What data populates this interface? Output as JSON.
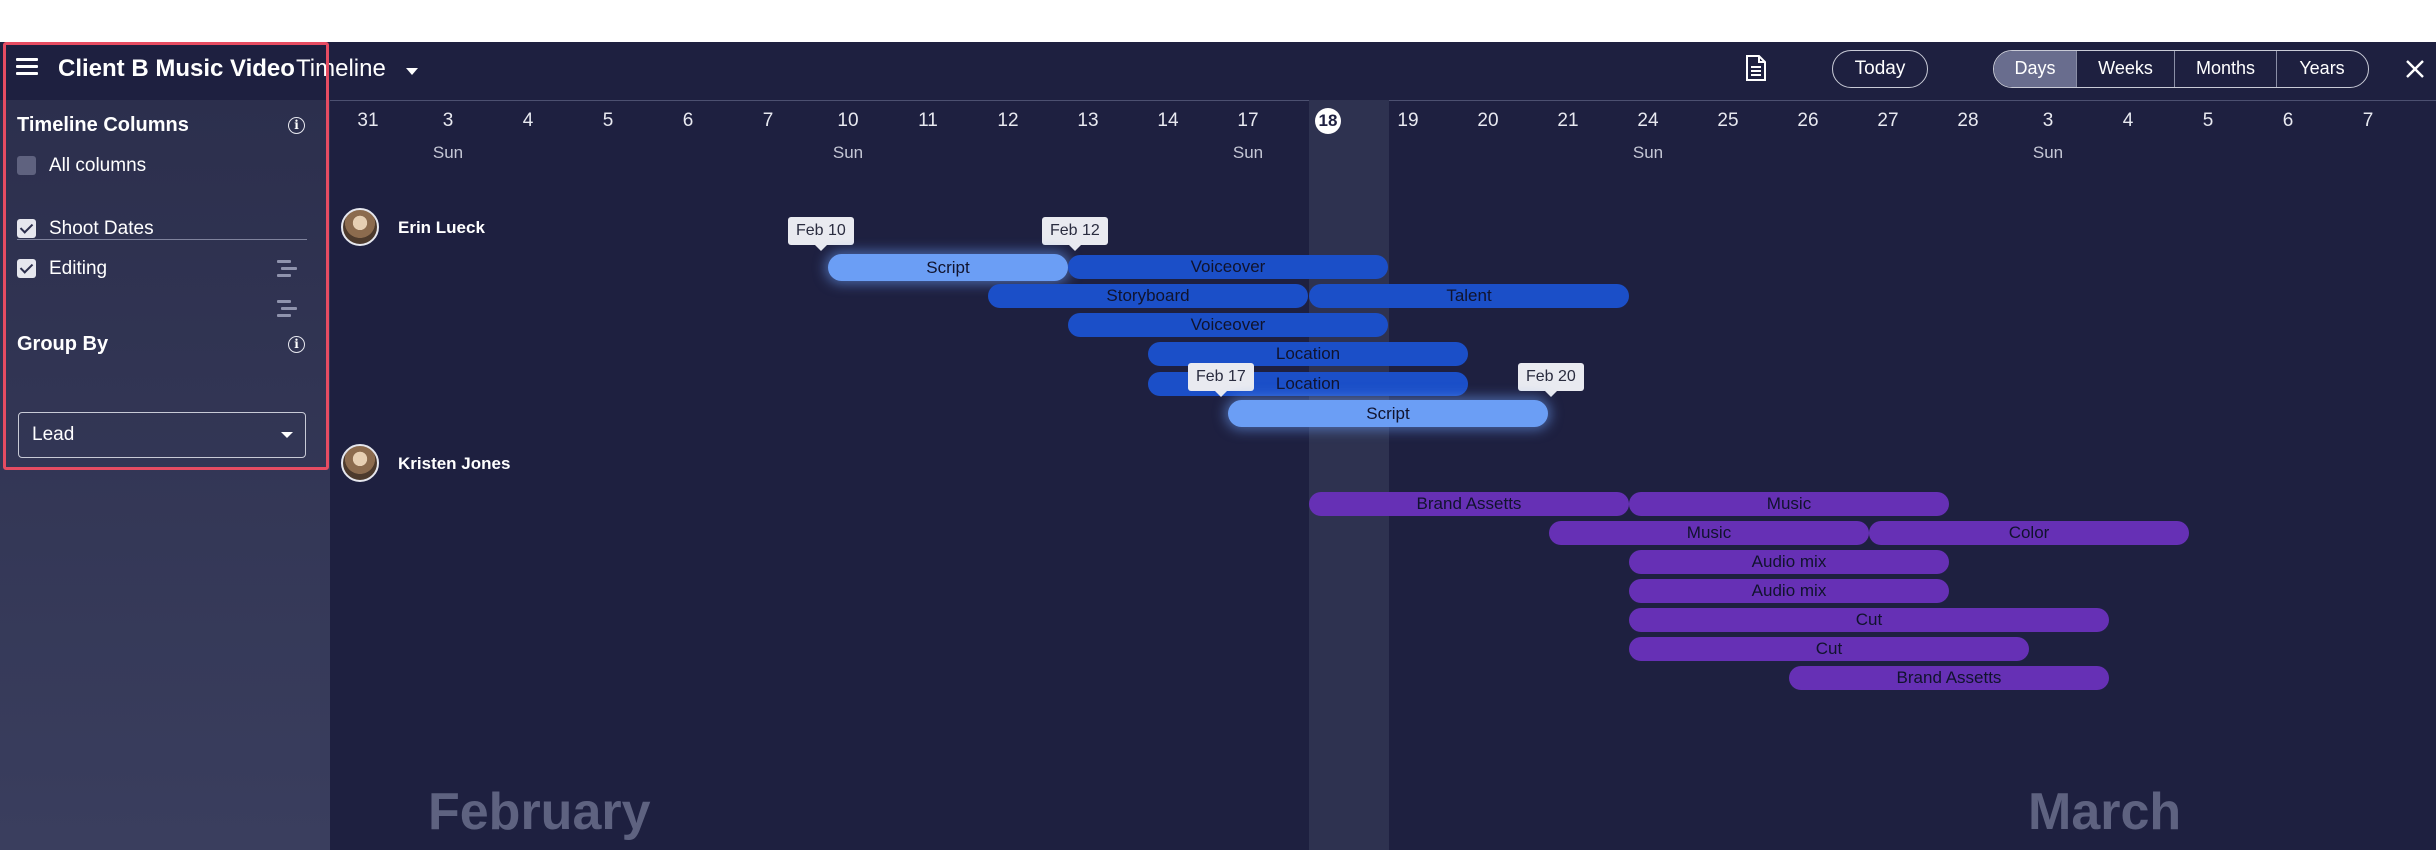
{
  "header": {
    "board_title": "Client B Music Video",
    "view_name": "Timeline",
    "today_label": "Today",
    "scales": [
      "Days",
      "Weeks",
      "Months",
      "Years"
    ],
    "active_scale": "Days"
  },
  "sidebar": {
    "columns_title": "Timeline Columns",
    "all_columns_label": "All columns",
    "all_columns_checked": false,
    "columns": [
      {
        "label": "Shoot Dates",
        "checked": true
      },
      {
        "label": "Editing",
        "checked": true
      }
    ],
    "group_by_title": "Group By",
    "group_by_value": "Lead"
  },
  "timeline": {
    "dates": [
      "31",
      "3",
      "4",
      "5",
      "6",
      "7",
      "10",
      "11",
      "12",
      "13",
      "14",
      "17",
      "18",
      "19",
      "20",
      "21",
      "24",
      "25",
      "26",
      "27",
      "28",
      "3",
      "4",
      "5",
      "6",
      "7"
    ],
    "day_of_week": [
      "",
      "Sun",
      "",
      "",
      "",
      "",
      "Sun",
      "",
      "",
      "",
      "",
      "Sun",
      "",
      "",
      "",
      "",
      "Sun",
      "",
      "",
      "",
      "",
      "Sun",
      "",
      "",
      "",
      ""
    ],
    "today": "18",
    "months": [
      "February",
      "March"
    ],
    "groups": [
      {
        "name": "Erin Lueck",
        "tooltips": [
          "Feb 10",
          "Feb 12",
          "Feb 17",
          "Feb 20"
        ],
        "items": [
          "Script",
          "Voiceover",
          "Storyboard",
          "Talent",
          "Voiceover",
          "Location",
          "Location",
          "Script"
        ]
      },
      {
        "name": "Kristen Jones",
        "items": [
          "Brand Assetts",
          "Music",
          "Music",
          "Color",
          "Audio mix",
          "Audio mix",
          "Cut",
          "Cut",
          "Brand Assetts"
        ]
      }
    ]
  },
  "colors": {
    "background": "#1e2040",
    "sidebar": "#2c2f4d",
    "blue_bar": "#1b4fc8",
    "highlight_bar": "#6b9ef5",
    "purple_bar": "#6630b5",
    "focus_ring": "#e64c62"
  },
  "icons": [
    "menu-icon",
    "chevron-down-icon",
    "document-icon",
    "close-icon",
    "info-icon",
    "drag-handle-icon"
  ]
}
